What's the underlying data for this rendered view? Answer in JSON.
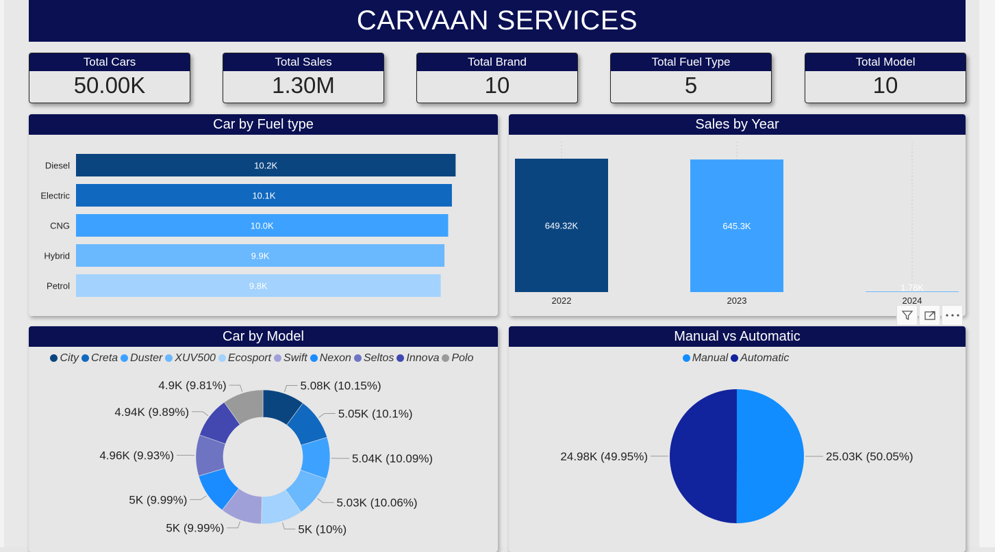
{
  "header": {
    "title": "CARVAAN SERVICES"
  },
  "kpis": [
    {
      "label": "Total Cars",
      "value": "50.00K"
    },
    {
      "label": "Total Sales",
      "value": "1.30M"
    },
    {
      "label": "Total Brand",
      "value": "10"
    },
    {
      "label": "Total Fuel Type",
      "value": "5"
    },
    {
      "label": "Total Model",
      "value": "10"
    }
  ],
  "panels": {
    "fuel": {
      "title": "Car by Fuel type"
    },
    "year": {
      "title": "Sales by Year"
    },
    "model": {
      "title": "Car by Model"
    },
    "trans": {
      "title": "Manual vs Automatic"
    }
  },
  "chart_data": [
    {
      "type": "bar",
      "orientation": "horizontal",
      "title": "Car by Fuel type",
      "categories": [
        "Diesel",
        "Electric",
        "CNG",
        "Hybrid",
        "Petrol"
      ],
      "values": [
        10200,
        10100,
        10000,
        9900,
        9800
      ],
      "data_labels": [
        "10.2K",
        "10.1K",
        "10.0K",
        "9.9K",
        "9.8K"
      ],
      "colors": [
        "#0b4580",
        "#1068bf",
        "#3da2ff",
        "#6ab8fe",
        "#a2d2fd"
      ],
      "grid": false
    },
    {
      "type": "bar",
      "title": "Sales by Year",
      "categories": [
        "2022",
        "2023",
        "2024"
      ],
      "values": [
        649320,
        645300,
        1780
      ],
      "data_labels": [
        "649.32K",
        "645.3K",
        "1.78K"
      ],
      "colors": [
        "#0b4580",
        "#3da2ff",
        "#6ab8fe"
      ],
      "grid": false
    },
    {
      "type": "pie",
      "variant": "donut",
      "title": "Car by Model",
      "legend_position": "top",
      "categories": [
        "City",
        "Creta",
        "Duster",
        "XUV500",
        "Ecosport",
        "Swift",
        "Nexon",
        "Seltos",
        "Innova",
        "Polo"
      ],
      "values": [
        5080,
        5050,
        5040,
        5030,
        5000,
        5000,
        5000,
        4960,
        4940,
        4900
      ],
      "data_labels": [
        "5.08K (10.15%)",
        "5.05K (10.1%)",
        "5.04K (10.09%)",
        "5.03K (10.06%)",
        "5K (10%)",
        "5K (9.99%)",
        "5K (9.99%)",
        "4.96K (9.93%)",
        "4.94K (9.89%)",
        "4.9K (9.81%)"
      ],
      "colors": [
        "#0b4580",
        "#1068bf",
        "#3da2ff",
        "#6ab8fe",
        "#a2d2fd",
        "#a0a0d8",
        "#1a8cff",
        "#6e74c2",
        "#4248b0",
        "#9a9a9a"
      ]
    },
    {
      "type": "pie",
      "title": "Manual vs Automatic",
      "legend_position": "top",
      "categories": [
        "Manual",
        "Automatic"
      ],
      "values": [
        25030,
        24980
      ],
      "data_labels": [
        "25.03K (50.05%)",
        "24.98K (49.95%)"
      ],
      "colors": [
        "#118dff",
        "#12239e"
      ]
    }
  ],
  "toolbar": {
    "icons": [
      "filter-icon",
      "focus-mode-icon",
      "more-options-icon"
    ]
  }
}
